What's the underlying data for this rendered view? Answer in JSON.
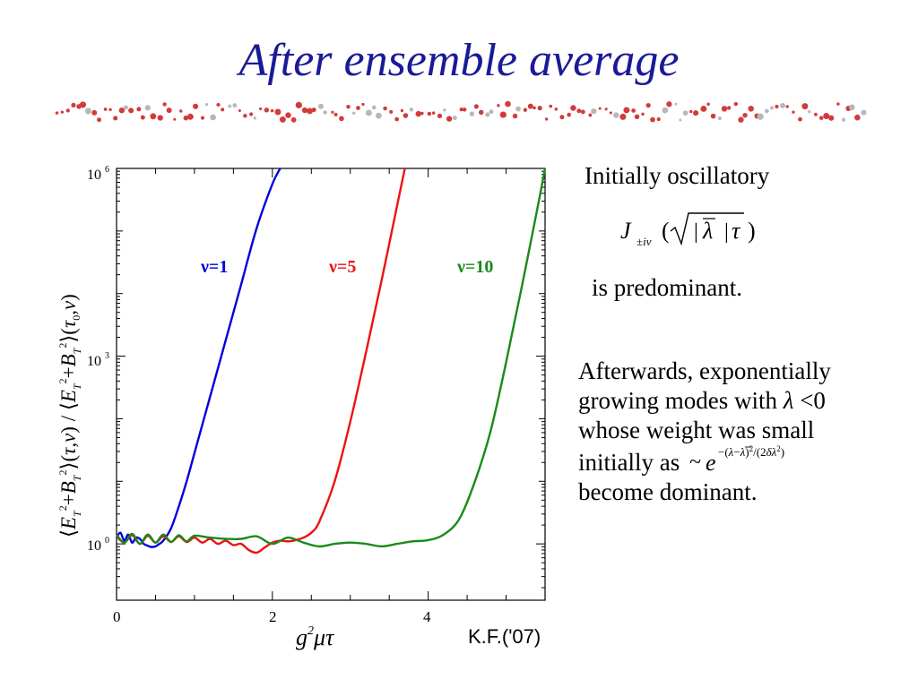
{
  "slide": {
    "title": "After ensemble average",
    "initially_text": "Initially oscillatory",
    "predominant_text": "is predominant.",
    "para_line1": "Afterwards, exponentially",
    "para_line2a": "growing modes with",
    "para_line2b": "<0",
    "para_line3": "whose weight was small",
    "para_line4": "initially as",
    "para_line5": "become dominant.",
    "credit": "K.F.('07)"
  },
  "colors": {
    "title": "#1a1a99",
    "divider": "#d23b3b",
    "nu1": "#0000dd",
    "nu5": "#ee1111",
    "nu10": "#1a8a1a"
  },
  "chart_data": {
    "type": "line",
    "title": "",
    "xlabel": "g²μτ",
    "ylabel": "⟨E_T²+B_T²⟩(τ,ν) / ⟨E_T²+B_T²⟩(τ0,ν)",
    "xlim": [
      0,
      5.5
    ],
    "ylim_log10": [
      -0.9,
      6
    ],
    "yscale": "log",
    "x_ticks": [
      "0",
      "2",
      "4"
    ],
    "y_ticks": [
      "10^0",
      "10^3",
      "10^6"
    ],
    "series": [
      {
        "name": "ν=1",
        "x": [
          0.0,
          0.05,
          0.1,
          0.15,
          0.2,
          0.25,
          0.3,
          0.35,
          0.4,
          0.45,
          0.5,
          0.55,
          0.6,
          0.7,
          0.8,
          0.9,
          1.0,
          1.2,
          1.4,
          1.6,
          1.8,
          2.0,
          2.1
        ],
        "y_log10": [
          0.1,
          0.18,
          0.05,
          0.15,
          0.02,
          0.1,
          0.08,
          0.0,
          -0.03,
          -0.05,
          -0.04,
          0.0,
          0.05,
          0.25,
          0.6,
          1.0,
          1.45,
          2.35,
          3.25,
          4.15,
          5.05,
          5.75,
          6.0
        ]
      },
      {
        "name": "ν=5",
        "x": [
          0.0,
          0.1,
          0.2,
          0.3,
          0.4,
          0.5,
          0.6,
          0.7,
          0.8,
          0.9,
          1.0,
          1.1,
          1.2,
          1.3,
          1.4,
          1.5,
          1.6,
          1.7,
          1.8,
          1.9,
          2.0,
          2.1,
          2.2,
          2.3,
          2.4,
          2.5,
          2.6,
          2.8,
          3.0,
          3.2,
          3.4,
          3.6,
          3.7
        ],
        "y_log10": [
          0.12,
          0.02,
          0.14,
          0.0,
          0.13,
          0.02,
          0.12,
          0.03,
          0.12,
          0.03,
          0.1,
          0.02,
          0.08,
          0.0,
          0.05,
          -0.02,
          0.0,
          -0.1,
          -0.14,
          -0.06,
          0.02,
          0.05,
          0.04,
          0.06,
          0.1,
          0.18,
          0.35,
          1.0,
          1.95,
          3.05,
          4.2,
          5.4,
          6.0
        ]
      },
      {
        "name": "ν=10",
        "x": [
          0.0,
          0.1,
          0.2,
          0.3,
          0.4,
          0.5,
          0.6,
          0.7,
          0.8,
          0.9,
          1.0,
          1.2,
          1.4,
          1.6,
          1.8,
          2.0,
          2.2,
          2.4,
          2.6,
          2.8,
          3.0,
          3.2,
          3.4,
          3.6,
          3.8,
          4.0,
          4.2,
          4.4,
          4.6,
          4.8,
          5.0,
          5.2,
          5.4,
          5.5
        ],
        "y_log10": [
          0.15,
          0.02,
          0.16,
          0.0,
          0.15,
          0.02,
          0.15,
          0.03,
          0.14,
          0.04,
          0.13,
          0.1,
          0.08,
          0.08,
          0.12,
          0.0,
          0.1,
          0.02,
          -0.04,
          0.0,
          0.02,
          0.0,
          -0.04,
          0.0,
          0.04,
          0.06,
          0.15,
          0.4,
          1.0,
          1.8,
          2.9,
          4.1,
          5.35,
          6.0
        ]
      }
    ],
    "annotations": [
      "ν=1",
      "ν=5",
      "ν=10"
    ]
  }
}
